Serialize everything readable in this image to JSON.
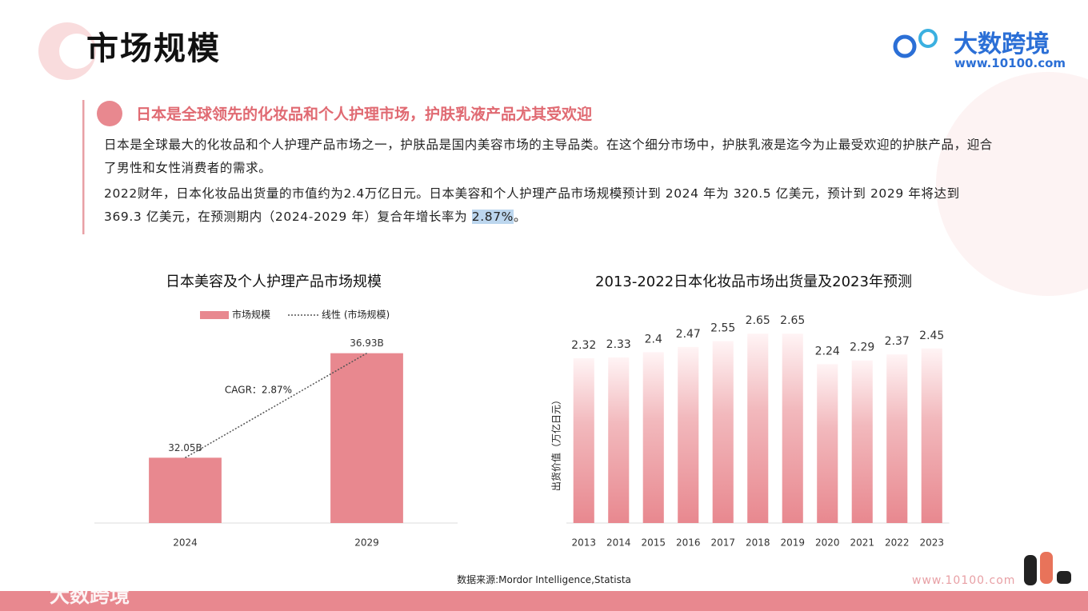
{
  "header": {
    "title": "市场规模",
    "logo": "大数跨境",
    "url": "www.10100.com"
  },
  "section": {
    "heading": "日本是全球领先的化妆品和个人护理市场，护肤乳液产品尤其受欢迎",
    "paragraph1": "日本是全球最大的化妆品和个人护理产品市场之一，护肤品是国内美容市场的主导品类。在这个细分市场中，护肤乳液是迄今为止最受欢迎的护肤产品，迎合了男性和女性消费者的需求。",
    "paragraph2": [
      "2022财年，日本化妆品出货量的市值约为2.4万亿日元。日本美容和个人护理产品市场规模预计到 2024 年为 320.5 亿美元，预计到 2029 年将达到 369.3 亿美元，在预测期内（2024-2029 年）复合年增长率为 ",
      "2.87%",
      "。"
    ]
  },
  "chart_data": [
    {
      "type": "bar",
      "title": "日本美容及个人护理产品市场规模",
      "categories": [
        "2024",
        "2029"
      ],
      "series": [
        {
          "name": "市场规模",
          "color": "#e8888f",
          "values": [
            32.05,
            36.93
          ],
          "value_labels": [
            "32.05B",
            "36.93B"
          ]
        }
      ],
      "trendline": {
        "name": "线性 (市场规模)",
        "color": "#555555"
      },
      "annotation": "CAGR：2.87%",
      "ylim": [
        29,
        38
      ],
      "legend": "top"
    },
    {
      "type": "bar",
      "title": "2013-2022日本化妆品市场出货量及2023年预测",
      "y_label": "出货价值（万亿日元）",
      "categories": [
        "2013",
        "2014",
        "2015",
        "2016",
        "2017",
        "2018",
        "2019",
        "2020",
        "2021",
        "2022",
        "2023"
      ],
      "series": [
        {
          "color": "#e8888f",
          "values": [
            2.32,
            2.33,
            2.4,
            2.47,
            2.55,
            2.65,
            2.65,
            2.24,
            2.29,
            2.37,
            2.45
          ]
        }
      ],
      "ylim": [
        0.1,
        2.9
      ],
      "gradient": true
    }
  ],
  "footer": {
    "source": "数据来源:Mordor Intelligence,Statista",
    "url": "www.10100.com",
    "watermark": "大数跨境"
  }
}
